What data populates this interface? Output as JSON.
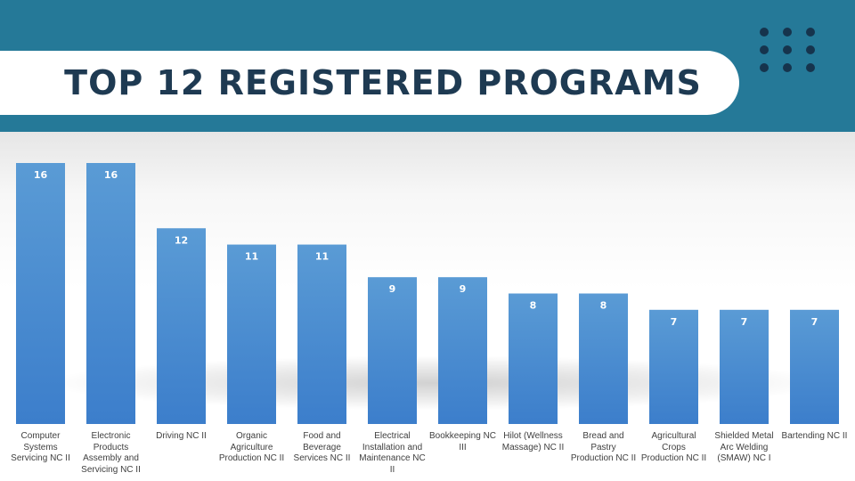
{
  "header": {
    "title": "TOP 12 REGISTERED PROGRAMS"
  },
  "colors": {
    "banner": "#257998",
    "title_text": "#1e3a52",
    "dots": "#16344d",
    "bar_top": "#5a9bd5",
    "bar_bottom": "#3c7ecb",
    "label_text": "#404040"
  },
  "chart_data": {
    "type": "bar",
    "title": "TOP 12 REGISTERED PROGRAMS",
    "categories": [
      "Computer Systems Servicing NC II",
      "Electronic Products Assembly and Servicing NC II",
      "Driving NC II",
      "Organic Agriculture Production NC II",
      "Food and Beverage Services NC II",
      "Electrical Installation and Maintenance NC II",
      "Bookkeeping NC III",
      "Hilot (Wellness Massage) NC II",
      "Bread and Pastry Production NC II",
      "Agricultural Crops Production NC II",
      "Shielded Metal Arc Welding (SMAW) NC I",
      "Bartending NC II"
    ],
    "values": [
      16,
      16,
      12,
      11,
      11,
      9,
      9,
      8,
      8,
      7,
      7,
      7
    ],
    "ylim": [
      0,
      16
    ],
    "xlabel": "",
    "ylabel": "",
    "grid": false,
    "data_labels": "inside-top"
  }
}
